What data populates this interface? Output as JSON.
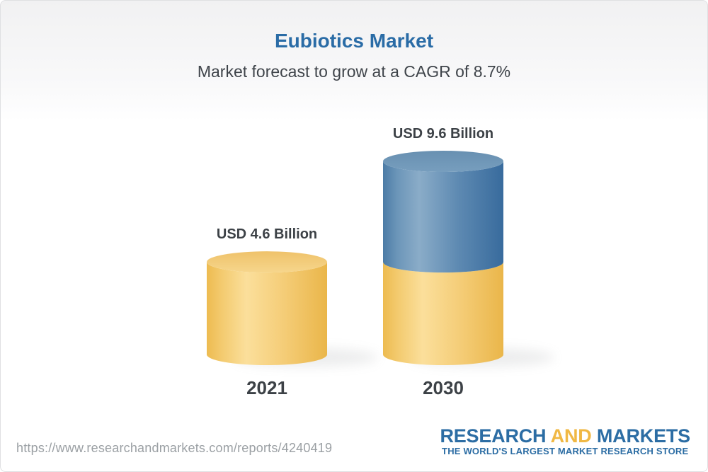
{
  "header": {
    "title": "Eubiotics Market",
    "subtitle": "Market forecast to grow at a CAGR of 8.7%"
  },
  "chart_data": {
    "type": "bar",
    "subtype": "3d-cylinder",
    "title": "Eubiotics Market",
    "subtitle": "Market forecast to grow at a CAGR of 8.7%",
    "unit": "USD Billion",
    "cagr_percent": 8.7,
    "categories": [
      "2021",
      "2030"
    ],
    "values": [
      4.6,
      9.6
    ],
    "bars": [
      {
        "category": "2021",
        "value": 4.6,
        "value_label": "USD 4.6 Billion",
        "segments": [
          {
            "color": "gold",
            "value": 4.6
          }
        ]
      },
      {
        "category": "2030",
        "value": 9.6,
        "value_label": "USD 9.6 Billion",
        "segments": [
          {
            "color": "gold",
            "value": 4.6
          },
          {
            "color": "blue",
            "value": 5.0
          }
        ]
      }
    ],
    "palette": {
      "gold": "#F2C260",
      "blue": "#4A7CA9",
      "label_text": "#3C4146"
    },
    "axes": "none",
    "legend": "none",
    "grid": false
  },
  "footer": {
    "url": "https://www.researchandmarkets.com/reports/4240419",
    "logo": {
      "word1": "RESEARCH",
      "word2": "AND",
      "word3": "MARKETS",
      "tagline": "THE WORLD'S LARGEST MARKET RESEARCH STORE",
      "blue": "#2C6DA4",
      "gold": "#F0B844"
    }
  }
}
